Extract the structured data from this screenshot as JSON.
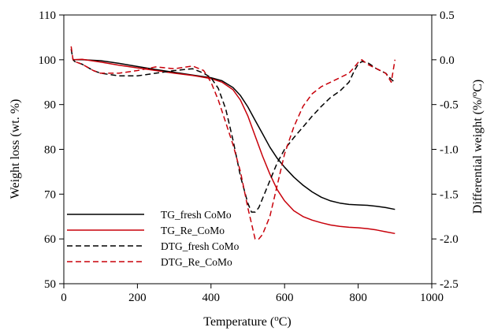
{
  "chart_data": {
    "type": "line",
    "xlabel": "Temperature (°C)",
    "xlabel_parts": {
      "pre": "Temperature (",
      "sup": "o",
      "post": "C)"
    },
    "ylabel_left": "Weight loss (wt. %)",
    "ylabel_right": "Differential weight (%/°C)",
    "ylabel_right_parts": {
      "pre": "Differential weight (%/",
      "sup": "o",
      "post": "C)"
    },
    "xlim": [
      0,
      1000
    ],
    "ylim_left": [
      50,
      110
    ],
    "ylim_right": [
      -2.5,
      0.5
    ],
    "x_ticks": [
      0,
      200,
      400,
      600,
      800,
      1000
    ],
    "y_left_ticks": [
      50,
      60,
      70,
      80,
      90,
      100,
      110
    ],
    "y_right_ticks": [
      "-2.5",
      "-2.0",
      "-1.5",
      "-1.0",
      "-0.5",
      "0.0",
      "0.5"
    ],
    "legend_position": "bottom-left",
    "series": [
      {
        "name": "TG_fresh CoMo",
        "axis": "left",
        "color": "#000000",
        "dash": "solid",
        "x": [
          25,
          50,
          100,
          150,
          200,
          250,
          300,
          350,
          400,
          430,
          460,
          480,
          500,
          520,
          540,
          560,
          580,
          600,
          625,
          650,
          675,
          700,
          725,
          750,
          775,
          800,
          825,
          850,
          875,
          900
        ],
        "y": [
          100,
          100,
          99.8,
          99.2,
          98.5,
          97.8,
          97.2,
          96.6,
          96,
          95.3,
          93.8,
          92,
          89.5,
          86.5,
          83.5,
          80.5,
          78,
          76,
          73.8,
          72,
          70.5,
          69.3,
          68.5,
          68,
          67.7,
          67.6,
          67.5,
          67.3,
          67,
          66.6
        ]
      },
      {
        "name": "TG_Re_CoMo",
        "axis": "left",
        "color": "#c8000a",
        "dash": "solid",
        "x": [
          25,
          50,
          100,
          150,
          200,
          250,
          300,
          350,
          400,
          430,
          460,
          480,
          500,
          520,
          540,
          560,
          580,
          600,
          625,
          650,
          675,
          700,
          725,
          750,
          775,
          800,
          825,
          850,
          875,
          900
        ],
        "y": [
          100,
          100.1,
          99.5,
          98.8,
          98.2,
          97.6,
          97,
          96.5,
          95.8,
          95,
          93.3,
          91,
          87.5,
          83,
          78.5,
          74.5,
          71,
          68.5,
          66.3,
          65,
          64.2,
          63.6,
          63.1,
          62.8,
          62.6,
          62.5,
          62.3,
          62,
          61.6,
          61.2
        ]
      },
      {
        "name": "DTG_fresh CoMo",
        "axis": "right",
        "color": "#000000",
        "dash": "dashed",
        "x": [
          20,
          25,
          30,
          50,
          80,
          100,
          150,
          200,
          250,
          300,
          350,
          380,
          400,
          420,
          440,
          460,
          480,
          500,
          510,
          520,
          530,
          540,
          560,
          580,
          600,
          625,
          650,
          675,
          700,
          725,
          750,
          775,
          790,
          800,
          810,
          825,
          850,
          875,
          890,
          900
        ],
        "y": [
          0.12,
          0.0,
          -0.02,
          -0.05,
          -0.12,
          -0.15,
          -0.18,
          -0.18,
          -0.15,
          -0.12,
          -0.1,
          -0.15,
          -0.2,
          -0.32,
          -0.55,
          -0.9,
          -1.3,
          -1.6,
          -1.7,
          -1.7,
          -1.65,
          -1.55,
          -1.35,
          -1.15,
          -1.0,
          -0.87,
          -0.75,
          -0.63,
          -0.52,
          -0.42,
          -0.35,
          -0.25,
          -0.12,
          -0.05,
          -0.02,
          -0.03,
          -0.1,
          -0.15,
          -0.22,
          -0.25
        ]
      },
      {
        "name": "DTG_Re_CoMo",
        "axis": "right",
        "color": "#c8000a",
        "dash": "dashed",
        "x": [
          20,
          25,
          30,
          50,
          80,
          100,
          150,
          200,
          250,
          300,
          350,
          380,
          400,
          420,
          440,
          460,
          480,
          500,
          520,
          530,
          540,
          560,
          580,
          600,
          625,
          650,
          675,
          700,
          725,
          750,
          775,
          790,
          800,
          810,
          825,
          850,
          875,
          890,
          900
        ],
        "y": [
          0.15,
          0.0,
          -0.02,
          -0.05,
          -0.12,
          -0.15,
          -0.15,
          -0.12,
          -0.08,
          -0.1,
          -0.07,
          -0.12,
          -0.25,
          -0.45,
          -0.7,
          -0.95,
          -1.25,
          -1.65,
          -2.0,
          -2.0,
          -1.95,
          -1.75,
          -1.4,
          -1.05,
          -0.75,
          -0.52,
          -0.38,
          -0.3,
          -0.25,
          -0.2,
          -0.15,
          -0.08,
          -0.03,
          0.0,
          -0.05,
          -0.1,
          -0.15,
          -0.25,
          0.0
        ]
      }
    ]
  }
}
